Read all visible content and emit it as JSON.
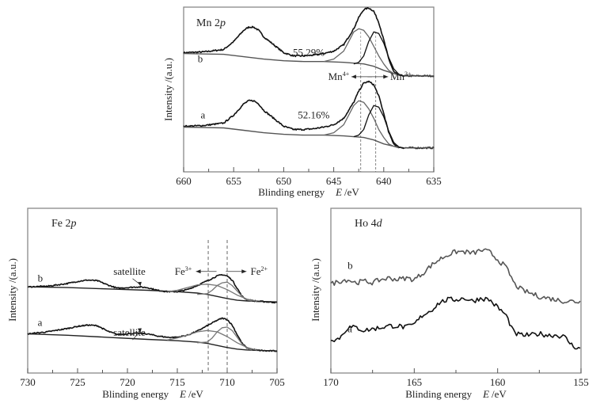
{
  "chart_data": [
    {
      "id": "mn",
      "type": "line",
      "title": "Mn 2p",
      "title_element": "Mn 2",
      "title_orbital": "p",
      "xlabel": "Blinding energy",
      "xlabel_var": "E",
      "xlabel_unit": "/eV",
      "ylabel": "Intensity /(a.u.)",
      "xlim": [
        660,
        635
      ],
      "ylim": [
        0,
        100
      ],
      "x_ticks": [
        660,
        655,
        650,
        645,
        640,
        635
      ],
      "x_minor_step": 2.5,
      "ref_lines": [
        642.3,
        640.8
      ],
      "annotations": [
        {
          "text": "55.29%",
          "x": 647.5,
          "y": 70,
          "series": "b"
        },
        {
          "text": "52.16%",
          "x": 647.0,
          "y": 31,
          "series": "a"
        },
        {
          "text": "Mn",
          "sup": "4+",
          "x": 644.5,
          "y": 55,
          "arrow": "left"
        },
        {
          "text": "Mn",
          "sup": "3+",
          "x": 638.3,
          "y": 55,
          "arrow": "right"
        }
      ],
      "series": [
        {
          "name": "b",
          "label": "b",
          "label_x": 658.6,
          "label_y": 66,
          "role": "envelope",
          "color": "#111111",
          "x": [
            660,
            658,
            656,
            655,
            654,
            653.5,
            653,
            652.5,
            652,
            651,
            650,
            649,
            648,
            647,
            646,
            645,
            644,
            643,
            642.5,
            642,
            641.5,
            641,
            640.5,
            640,
            639.5,
            639,
            638.5,
            638,
            637,
            636,
            635
          ],
          "y": [
            72,
            72.5,
            74,
            79,
            86,
            88,
            88,
            86,
            82,
            77,
            72,
            70,
            70,
            70.5,
            71.5,
            73,
            77,
            87,
            94,
            99,
            100,
            98,
            91,
            80,
            68,
            60,
            58,
            57.5,
            57.5,
            57.5,
            57.5
          ]
        },
        {
          "name": "b-baseline",
          "role": "background",
          "color": "#555555",
          "x": [
            660,
            656,
            654,
            652,
            650,
            648,
            646,
            644,
            642,
            641,
            640,
            639,
            638.5,
            638,
            637,
            635
          ],
          "y": [
            71.5,
            71,
            69.5,
            68,
            67,
            66.5,
            66.5,
            66,
            65,
            63.5,
            61,
            59,
            58,
            57.5,
            57.5,
            57.5
          ]
        },
        {
          "name": "b-Mn4+",
          "role": "component",
          "color": "#666666",
          "x": [
            646,
            645,
            644,
            643.5,
            643,
            642.5,
            642,
            641.5,
            641,
            640.5,
            640,
            639.5,
            639,
            638.5
          ],
          "y": [
            66.5,
            68,
            73,
            79,
            85,
            87,
            86,
            82,
            76,
            70,
            65,
            61,
            59,
            58
          ]
        },
        {
          "name": "b-Mn3+",
          "role": "component",
          "color": "#111111",
          "x": [
            643,
            642.5,
            642,
            641.5,
            641,
            640.5,
            640,
            639.5,
            639,
            638.5,
            638
          ],
          "y": [
            65,
            66,
            70,
            79,
            85,
            84,
            78,
            69,
            62,
            58.5,
            57.5
          ]
        },
        {
          "name": "a",
          "label": "a",
          "label_x": 658.3,
          "label_y": 31,
          "role": "envelope",
          "color": "#111111",
          "x": [
            660,
            658,
            656,
            655,
            654,
            653.5,
            653,
            652.5,
            652,
            651,
            650,
            649,
            648,
            647,
            646,
            645,
            644,
            643,
            642.5,
            642,
            641.5,
            641,
            640.5,
            640,
            639.5,
            639,
            638.5,
            638,
            637,
            636,
            635
          ],
          "y": [
            26,
            26.5,
            28,
            33,
            40,
            42,
            42,
            40,
            36,
            31,
            26,
            24,
            24,
            24.5,
            25.5,
            27,
            31,
            41,
            48,
            53,
            54,
            52,
            45,
            34,
            22,
            15,
            13,
            12.5,
            12.5,
            12.5,
            12.5
          ]
        },
        {
          "name": "a-baseline",
          "role": "background",
          "color": "#555555",
          "x": [
            660,
            656,
            654,
            652,
            650,
            648,
            646,
            644,
            642,
            641,
            640,
            639,
            638.5,
            638,
            637,
            635
          ],
          "y": [
            25.5,
            25,
            23.5,
            22,
            21,
            20.5,
            20.5,
            20,
            19,
            17.5,
            15,
            13.5,
            13,
            12.5,
            12.5,
            12.5
          ]
        },
        {
          "name": "a-Mn4+",
          "role": "component",
          "color": "#666666",
          "x": [
            646,
            645,
            644,
            643.5,
            643,
            642.5,
            642,
            641.5,
            641,
            640.5,
            640,
            639.5,
            639,
            638.5
          ],
          "y": [
            20.5,
            22,
            27,
            33,
            39,
            42,
            41,
            37,
            31,
            24,
            19,
            15,
            13.5,
            12.5
          ]
        },
        {
          "name": "a-Mn3+",
          "role": "component",
          "color": "#111111",
          "x": [
            643,
            642.5,
            642,
            641.5,
            641,
            640.5,
            640,
            639.5,
            639,
            638.5,
            638
          ],
          "y": [
            19.5,
            20.5,
            24,
            33,
            39,
            38,
            32,
            23,
            16,
            13,
            12.5
          ]
        }
      ]
    },
    {
      "id": "fe",
      "type": "line",
      "title": "Fe 2p",
      "title_element": "Fe 2",
      "title_orbital": "p",
      "xlabel": "Blinding energy",
      "xlabel_var": "E",
      "xlabel_unit": "/eV",
      "ylabel": "Intensity /(a.u.)",
      "xlim": [
        730,
        705
      ],
      "ylim": [
        0,
        100
      ],
      "x_ticks": [
        730,
        725,
        720,
        715,
        710,
        705
      ],
      "x_minor_step": 2.5,
      "ref_lines": [
        711.9,
        710.0
      ],
      "annotations": [
        {
          "text": "satellite",
          "x": 719.8,
          "y": 67,
          "series": "b",
          "arrow_to": [
            718.7,
            58.5
          ]
        },
        {
          "text": "satellite",
          "x": 719.8,
          "y": 22,
          "series": "a",
          "arrow_to": [
            718.7,
            24.5
          ]
        },
        {
          "text": "Fe",
          "sup": "3+",
          "x": 714.4,
          "y": 67,
          "arrow": "left"
        },
        {
          "text": "Fe",
          "sup": "2+",
          "x": 706.8,
          "y": 67,
          "arrow": "right"
        }
      ],
      "series": [
        {
          "name": "b",
          "label": "b",
          "label_x": 729,
          "label_y": 62,
          "role": "envelope",
          "color": "#111111",
          "x": [
            730,
            728,
            726,
            725,
            724,
            723,
            722,
            721,
            720,
            719,
            718,
            717,
            716,
            715,
            714,
            713,
            712,
            711,
            710.5,
            710,
            709.5,
            709,
            708.5,
            708,
            707,
            706,
            705
          ],
          "y": [
            58,
            58.5,
            60.5,
            62,
            63,
            62.5,
            59.5,
            57,
            57.5,
            58,
            57.5,
            55.5,
            54.5,
            54.5,
            56,
            59,
            62.5,
            66,
            67,
            66,
            63,
            57,
            51,
            48.5,
            47.5,
            47,
            46.5
          ]
        },
        {
          "name": "b-baseline",
          "role": "background",
          "color": "#222222",
          "x": [
            730,
            726,
            722,
            718,
            715,
            713,
            712,
            711,
            710,
            709,
            708,
            707,
            705
          ],
          "y": [
            58,
            57.5,
            56.5,
            55.5,
            54.5,
            53.5,
            52.5,
            51,
            49.5,
            48.2,
            47.7,
            47.4,
            47
          ]
        },
        {
          "name": "b-Fe3+",
          "role": "component",
          "color": "#777777",
          "x": [
            716,
            715,
            714,
            713,
            712,
            711,
            710,
            709,
            708,
            707
          ],
          "y": [
            54.5,
            55.5,
            57.5,
            59.5,
            60,
            59,
            56,
            52,
            49,
            47.5
          ]
        },
        {
          "name": "b-Fe2+",
          "role": "component",
          "color": "#777777",
          "x": [
            713,
            712,
            711.5,
            711,
            710.5,
            710,
            709.5,
            709,
            708.5,
            708,
            707.5
          ],
          "y": [
            52.5,
            53,
            55.5,
            59,
            61,
            61.5,
            59,
            55,
            51,
            48.5,
            47.5
          ]
        },
        {
          "name": "a",
          "label": "a",
          "label_x": 729,
          "label_y": 29.5,
          "role": "envelope",
          "color": "#111111",
          "x": [
            730,
            728,
            726,
            725,
            724,
            723,
            722,
            721,
            720,
            719,
            718,
            717,
            716,
            715,
            714,
            713,
            712,
            711,
            710.5,
            710,
            709.5,
            709,
            708.5,
            708,
            707,
            706,
            705
          ],
          "y": [
            23.5,
            25,
            27.5,
            29,
            30,
            29.5,
            25.5,
            23,
            23.5,
            24,
            23.5,
            22,
            21,
            21,
            22.5,
            25.5,
            29.5,
            33.5,
            35,
            34,
            30,
            23,
            16.5,
            13,
            11.5,
            11,
            11
          ]
        },
        {
          "name": "a-baseline",
          "role": "background",
          "color": "#222222",
          "x": [
            730,
            726,
            722,
            718,
            715,
            713,
            712,
            711,
            710,
            709,
            708,
            707,
            705
          ],
          "y": [
            23.5,
            22.5,
            21,
            19.5,
            18.5,
            17.5,
            16.5,
            15,
            13.5,
            12.3,
            11.7,
            11.4,
            11
          ]
        },
        {
          "name": "a-Fe3+",
          "role": "component",
          "color": "#777777",
          "x": [
            716,
            715,
            714,
            713,
            712,
            711,
            710,
            709,
            708,
            707
          ],
          "y": [
            19,
            20.5,
            22.5,
            25,
            26,
            25,
            21.5,
            17,
            13.5,
            11.5
          ]
        },
        {
          "name": "a-Fe2+",
          "role": "component",
          "color": "#777777",
          "x": [
            713,
            712,
            711.5,
            711,
            710.5,
            710,
            709.5,
            709,
            708.5,
            708,
            707.5
          ],
          "y": [
            17,
            17.5,
            20.5,
            25,
            28,
            28.5,
            26,
            21,
            16,
            13,
            11.5
          ]
        }
      ]
    },
    {
      "id": "ho",
      "type": "line",
      "title": "Ho 4d",
      "title_element": "Ho 4",
      "title_orbital": "d",
      "xlabel": "Blinding energy",
      "xlabel_var": "E",
      "xlabel_unit": "/eV",
      "ylabel": "Intensity /(a.u.)",
      "xlim": [
        170,
        155
      ],
      "ylim": [
        0,
        100
      ],
      "x_ticks": [
        170,
        165,
        160,
        155
      ],
      "x_minor_step": 2.5,
      "ref_lines": [],
      "annotations": [],
      "series": [
        {
          "name": "b",
          "label": "b",
          "label_x": 169,
          "label_y": 67,
          "role": "spectrum",
          "color": "#555555",
          "x": [
            170,
            169.5,
            169,
            168.5,
            168,
            167.5,
            167,
            166.5,
            166,
            165.5,
            165,
            164.5,
            164,
            163.5,
            163,
            162.5,
            162,
            161.5,
            161,
            160.5,
            160,
            159.5,
            159.2,
            159,
            158.5,
            158,
            157.5,
            157,
            156.5,
            156,
            155.5,
            155
          ],
          "y": [
            57,
            59,
            60,
            58,
            59,
            58,
            60,
            61,
            60,
            61,
            60,
            64,
            69,
            73,
            76,
            78,
            78,
            77,
            79,
            78,
            73,
            68,
            62,
            57,
            53,
            51,
            49,
            48,
            47,
            46,
            46,
            45.5
          ]
        },
        {
          "name": "a",
          "label": "a",
          "label_x": 169,
          "label_y": 26,
          "role": "spectrum",
          "color": "#111111",
          "x": [
            170,
            169.7,
            169.4,
            169,
            168.5,
            168,
            167.5,
            167,
            166.5,
            166,
            165.5,
            165,
            164.5,
            164,
            163.5,
            163,
            162.5,
            162,
            161.5,
            161,
            160.5,
            160,
            159.5,
            159.2,
            159,
            158.5,
            158,
            157.5,
            157,
            156.5,
            156,
            155.5,
            155
          ],
          "y": [
            22,
            21,
            23,
            29,
            29,
            27,
            28,
            29,
            30,
            30,
            29,
            31,
            37,
            40,
            45,
            47,
            47,
            48,
            46,
            48,
            47,
            42,
            37,
            30,
            25,
            24,
            24,
            25,
            24,
            24,
            23,
            17,
            15
          ]
        }
      ]
    }
  ]
}
